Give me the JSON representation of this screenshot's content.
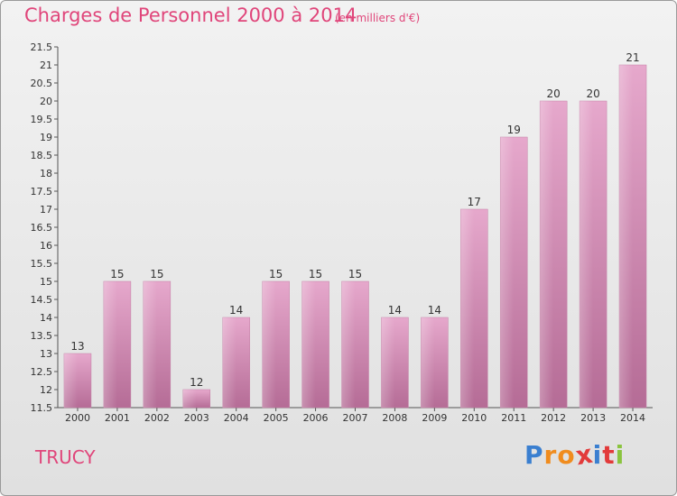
{
  "title": "Charges de Personnel 2000 à 2014",
  "subtitle": "(en milliers d'€)",
  "commune": "TRUCY",
  "logo": {
    "text": "Proxiti",
    "letters": [
      "P",
      "r",
      "o",
      "x",
      "i",
      "t",
      "i"
    ],
    "colors": [
      "#3a7fd0",
      "#f08c1e",
      "#f08c1e",
      "#e23a3a",
      "#3a7fd0",
      "#e23a3a",
      "#8ac43f"
    ]
  },
  "chart_data": {
    "type": "bar",
    "categories": [
      "2000",
      "2001",
      "2002",
      "2003",
      "2004",
      "2005",
      "2006",
      "2007",
      "2008",
      "2009",
      "2010",
      "2011",
      "2012",
      "2013",
      "2014"
    ],
    "values": [
      13,
      15,
      15,
      12,
      14,
      15,
      15,
      15,
      14,
      14,
      17,
      19,
      20,
      20,
      21
    ],
    "data_labels": [
      "13",
      "15",
      "15",
      "12",
      "14",
      "15",
      "15",
      "15",
      "14",
      "14",
      "17",
      "19",
      "20",
      "20",
      "21"
    ],
    "title": "Charges de Personnel 2000 à 2014",
    "subtitle": "(en milliers d'€)",
    "ylim": [
      11.5,
      21.5
    ],
    "yticks": [
      "11.5",
      "12",
      "12.5",
      "13",
      "13.5",
      "14",
      "14.5",
      "15",
      "15.5",
      "16",
      "16.5",
      "17",
      "17.5",
      "18",
      "18.5",
      "19",
      "19.5",
      "20",
      "20.5",
      "21",
      "21.5"
    ],
    "grid": false,
    "legend": "none",
    "bar_color": "#d98cb5"
  }
}
